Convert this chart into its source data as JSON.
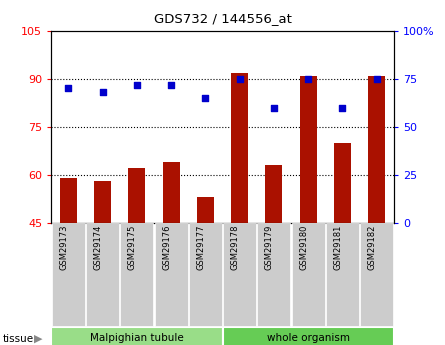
{
  "title": "GDS732 / 144556_at",
  "samples": [
    "GSM29173",
    "GSM29174",
    "GSM29175",
    "GSM29176",
    "GSM29177",
    "GSM29178",
    "GSM29179",
    "GSM29180",
    "GSM29181",
    "GSM29182"
  ],
  "counts": [
    59,
    58,
    62,
    64,
    53,
    92,
    63,
    91,
    70,
    91
  ],
  "percentiles": [
    70,
    68,
    72,
    72,
    65,
    75,
    60,
    75,
    60,
    75
  ],
  "ylim_left": [
    45,
    105
  ],
  "ylim_right": [
    0,
    100
  ],
  "yticks_left": [
    45,
    60,
    75,
    90,
    105
  ],
  "yticks_right": [
    0,
    25,
    50,
    75,
    100
  ],
  "ytick_labels_right": [
    "0",
    "25",
    "50",
    "75",
    "100%"
  ],
  "bar_color": "#AA1100",
  "scatter_color": "#0000CC",
  "tissue_groups": [
    {
      "label": "Malpighian tubule",
      "start": 0,
      "end": 5,
      "color": "#99DD88"
    },
    {
      "label": "whole organism",
      "start": 5,
      "end": 10,
      "color": "#66CC55"
    }
  ],
  "tissue_label": "tissue",
  "grid_yticks": [
    60,
    75,
    90
  ],
  "background_color": "#ffffff",
  "bar_bottom": 45,
  "tick_bg_color": "#cccccc"
}
